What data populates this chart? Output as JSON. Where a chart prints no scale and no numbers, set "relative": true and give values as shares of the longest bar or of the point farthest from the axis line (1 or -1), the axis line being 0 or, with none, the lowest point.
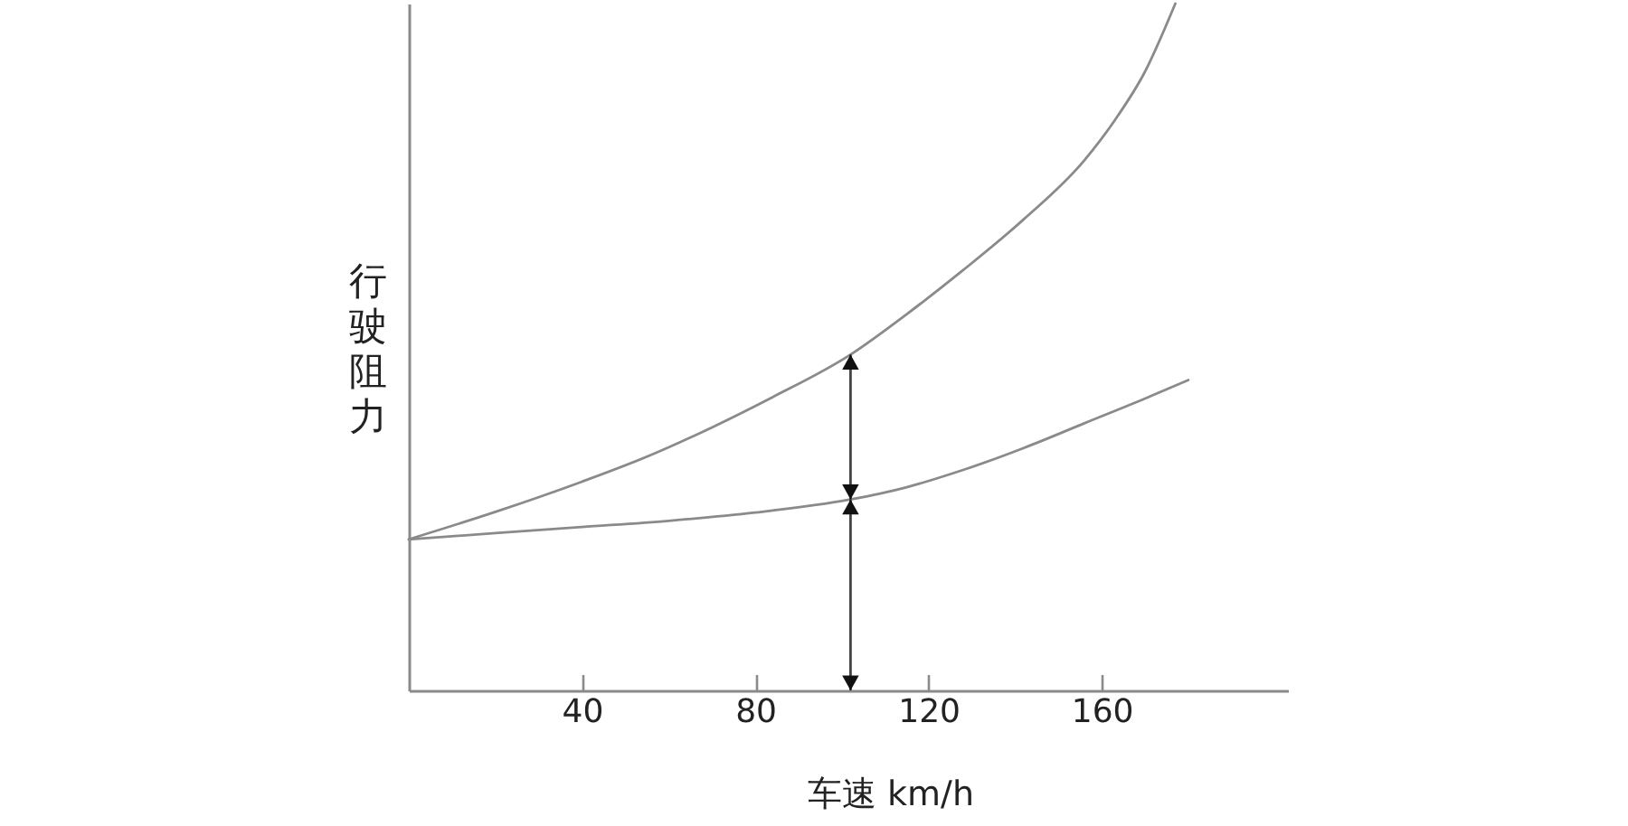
{
  "chart_data": {
    "type": "line",
    "xlabel": "车速 km/h",
    "ylabel": "行驶阻力",
    "relative": true,
    "xlim": [
      0,
      203
    ],
    "xticks": [
      40,
      80,
      120,
      160
    ],
    "series": [
      {
        "color": "#8a8a8a",
        "x": [
          0,
          20,
          40,
          56,
          70,
          84,
          102,
          115,
          128,
          142,
          156,
          163,
          170,
          177
        ],
        "values": [
          0.22,
          0.26,
          0.304,
          0.343,
          0.383,
          0.427,
          0.489,
          0.548,
          0.612,
          0.686,
          0.772,
          0.83,
          0.901,
          1
        ]
      },
      {
        "color": "#8a8a8a",
        "x": [
          0,
          20,
          40,
          60,
          80,
          102,
          115,
          128,
          142,
          156,
          170,
          180
        ],
        "values": [
          0.22,
          0.229,
          0.238,
          0.247,
          0.259,
          0.278,
          0.296,
          0.321,
          0.353,
          0.389,
          0.425,
          0.452
        ]
      }
    ],
    "ref_lines": [
      {
        "axis": "x",
        "value": 102,
        "color": "#444444"
      }
    ]
  }
}
